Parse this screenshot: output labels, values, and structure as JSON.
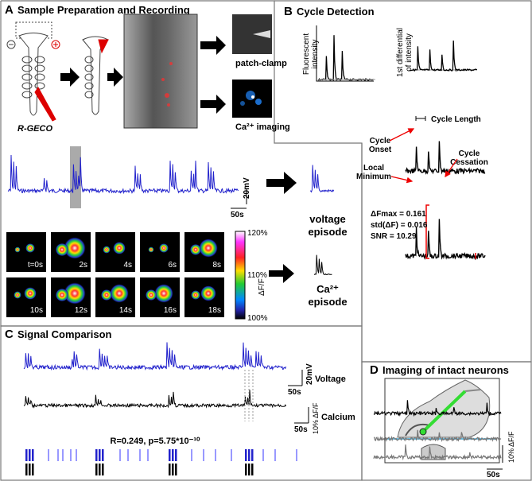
{
  "panel_a": {
    "letter": "A",
    "title": "Sample Preparation and Recording",
    "r_geco": "R-GECO",
    "patch_clamp": "patch-clamp",
    "ca_imaging": "Ca²⁺ imaging",
    "voltage_scale": "20mV",
    "time_scale": "50s",
    "voltage_episode": [
      "voltage",
      "episode"
    ],
    "ca_episode": [
      "Ca²⁺",
      "episode"
    ],
    "colorbar_ticks": [
      "120%",
      "110%",
      "100%"
    ],
    "colorbar_label": "ΔF/F",
    "frames": [
      "t=0s",
      "2s",
      "4s",
      "6s",
      "8s",
      "10s",
      "12s",
      "14s",
      "16s",
      "18s"
    ]
  },
  "panel_b": {
    "letter": "B",
    "title": "Cycle Detection",
    "fluorescent": [
      "Fluorescent",
      "intensity"
    ],
    "differential": [
      "1st differential",
      "of intensity"
    ],
    "cycle_length": "Cycle Length",
    "cycle_onset": [
      "Cycle",
      "Onset"
    ],
    "cycle_cessation": [
      "Cycle",
      "Cessation"
    ],
    "local_minimum": [
      "Local",
      "Minimum"
    ],
    "stats": [
      "ΔFmax = 0.161",
      "std(ΔF) = 0.016",
      "SNR = 10.29"
    ]
  },
  "panel_c": {
    "letter": "C",
    "title": "Signal Comparison",
    "voltage_scale": "20mV",
    "voltage": "Voltage",
    "time_scale_v": "50s",
    "calcium_scale": "10% ΔF/F",
    "calcium": "Calcium",
    "time_scale_c": "50s",
    "correlation": "R=0.249, p=5.75*10⁻¹⁰"
  },
  "panel_d": {
    "letter": "D",
    "title": "Imaging of intact neurons",
    "scale": "10% ΔF/F",
    "time_scale": "50s"
  }
}
